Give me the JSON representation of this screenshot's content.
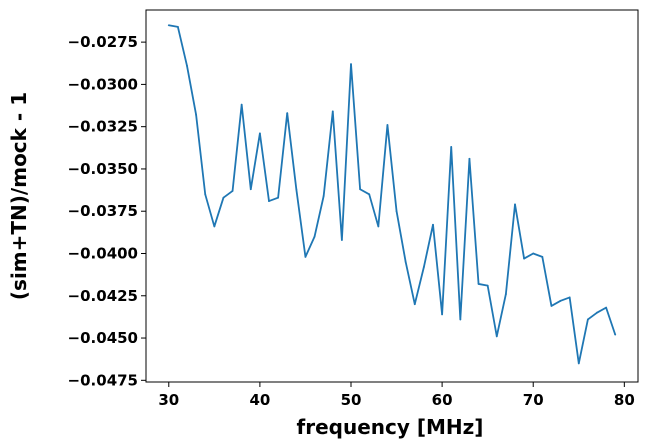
{
  "chart_data": {
    "type": "line",
    "title": "",
    "xlabel": "frequency [MHz]",
    "ylabel": "(sim+TN)/mock - 1",
    "xlim": [
      27.5,
      81.5
    ],
    "ylim": [
      -0.0476,
      -0.0256
    ],
    "x_ticks": [
      30,
      40,
      50,
      60,
      70,
      80
    ],
    "x_tick_labels": [
      "30",
      "40",
      "50",
      "60",
      "70",
      "80"
    ],
    "y_ticks": [
      -0.0475,
      -0.045,
      -0.0425,
      -0.04,
      -0.0375,
      -0.035,
      -0.0325,
      -0.03,
      -0.0275
    ],
    "y_tick_labels": [
      "−0.0475",
      "−0.0450",
      "−0.0425",
      "−0.0400",
      "−0.0375",
      "−0.0350",
      "−0.0325",
      "−0.0300",
      "−0.0275"
    ],
    "grid": false,
    "series": [
      {
        "color": "#1f77b4",
        "x": [
          30,
          31,
          32,
          33,
          34,
          35,
          36,
          37,
          38,
          39,
          40,
          41,
          42,
          43,
          44,
          45,
          46,
          47,
          48,
          49,
          50,
          51,
          52,
          53,
          54,
          55,
          56,
          57,
          58,
          59,
          60,
          61,
          62,
          63,
          64,
          65,
          66,
          67,
          68,
          69,
          70,
          71,
          72,
          73,
          74,
          75,
          76,
          77,
          78,
          79
        ],
        "y": [
          -0.0265,
          -0.0266,
          -0.0289,
          -0.0318,
          -0.0365,
          -0.0384,
          -0.0367,
          -0.0363,
          -0.0312,
          -0.0362,
          -0.0329,
          -0.0369,
          -0.0367,
          -0.0317,
          -0.0362,
          -0.0402,
          -0.039,
          -0.0366,
          -0.0316,
          -0.0392,
          -0.0288,
          -0.0362,
          -0.0365,
          -0.0384,
          -0.0324,
          -0.0375,
          -0.0405,
          -0.043,
          -0.0408,
          -0.0383,
          -0.0436,
          -0.0337,
          -0.0439,
          -0.0344,
          -0.0418,
          -0.0419,
          -0.0449,
          -0.0424,
          -0.0371,
          -0.0403,
          -0.04,
          -0.0402,
          -0.0431,
          -0.0428,
          -0.0426,
          -0.0465,
          -0.0439,
          -0.0435,
          -0.0432,
          -0.0448
        ]
      }
    ]
  }
}
